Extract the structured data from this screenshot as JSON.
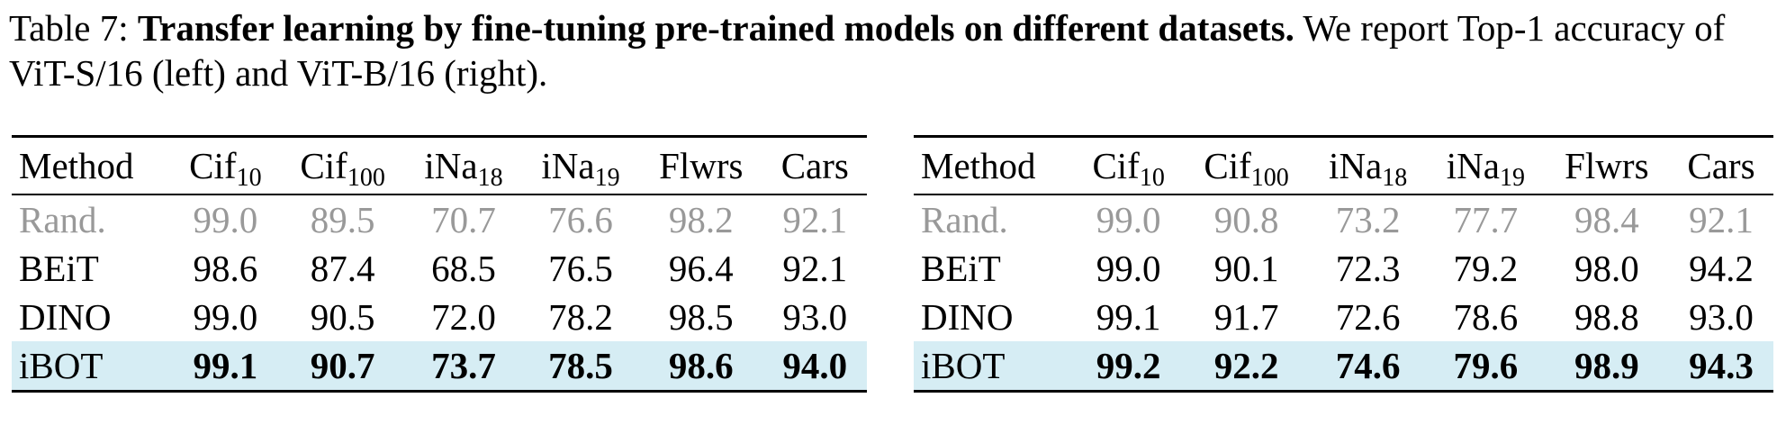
{
  "caption": {
    "label": "Table 7:",
    "bold": "Transfer learning by fine-tuning pre-trained models on different datasets.",
    "text": "We report Top-1 accuracy of ViT-S/16 (left) and ViT-B/16 (right)."
  },
  "tables": [
    {
      "header": [
        {
          "text": "Method"
        },
        {
          "text": "Cif",
          "sub": "10"
        },
        {
          "text": "Cif",
          "sub": "100"
        },
        {
          "text": "iNa",
          "sub": "18"
        },
        {
          "text": "iNa",
          "sub": "19"
        },
        {
          "text": "Flwrs"
        },
        {
          "text": "Cars"
        }
      ],
      "rows": [
        [
          "Rand.",
          "99.0",
          "89.5",
          "70.7",
          "76.6",
          "98.2",
          "92.1"
        ],
        [
          "BEiT",
          "98.6",
          "87.4",
          "68.5",
          "76.5",
          "96.4",
          "92.1"
        ],
        [
          "DINO",
          "99.0",
          "90.5",
          "72.0",
          "78.2",
          "98.5",
          "93.0"
        ],
        [
          "iBOT",
          "99.1",
          "90.7",
          "73.7",
          "78.5",
          "98.6",
          "94.0"
        ]
      ]
    },
    {
      "header": [
        {
          "text": "Method"
        },
        {
          "text": "Cif",
          "sub": "10"
        },
        {
          "text": "Cif",
          "sub": "100"
        },
        {
          "text": "iNa",
          "sub": "18"
        },
        {
          "text": "iNa",
          "sub": "19"
        },
        {
          "text": "Flwrs"
        },
        {
          "text": "Cars"
        }
      ],
      "rows": [
        [
          "Rand.",
          "99.0",
          "90.8",
          "73.2",
          "77.7",
          "98.4",
          "92.1"
        ],
        [
          "BEiT",
          "99.0",
          "90.1",
          "72.3",
          "79.2",
          "98.0",
          "94.2"
        ],
        [
          "DINO",
          "99.1",
          "91.7",
          "72.6",
          "78.6",
          "98.8",
          "93.0"
        ],
        [
          "iBOT",
          "99.2",
          "92.2",
          "74.6",
          "79.6",
          "98.9",
          "94.3"
        ]
      ]
    }
  ]
}
